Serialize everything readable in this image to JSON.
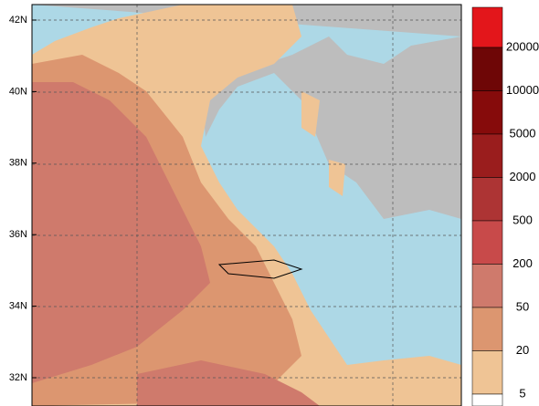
{
  "map": {
    "lat_labels": [
      "42N",
      "40N",
      "38N",
      "36N",
      "34N",
      "32N"
    ]
  },
  "colorbar": {
    "labels": [
      "20000",
      "10000",
      "5000",
      "2000",
      "500",
      "200",
      "50",
      "20",
      "5"
    ],
    "colors": [
      "#e3161b",
      "#6e0606",
      "#860b0b",
      "#9a1d1d",
      "#ad3434",
      "#c84a4a",
      "#cf7a6c",
      "#dc9670",
      "#efc495",
      "#ffffff"
    ]
  }
}
